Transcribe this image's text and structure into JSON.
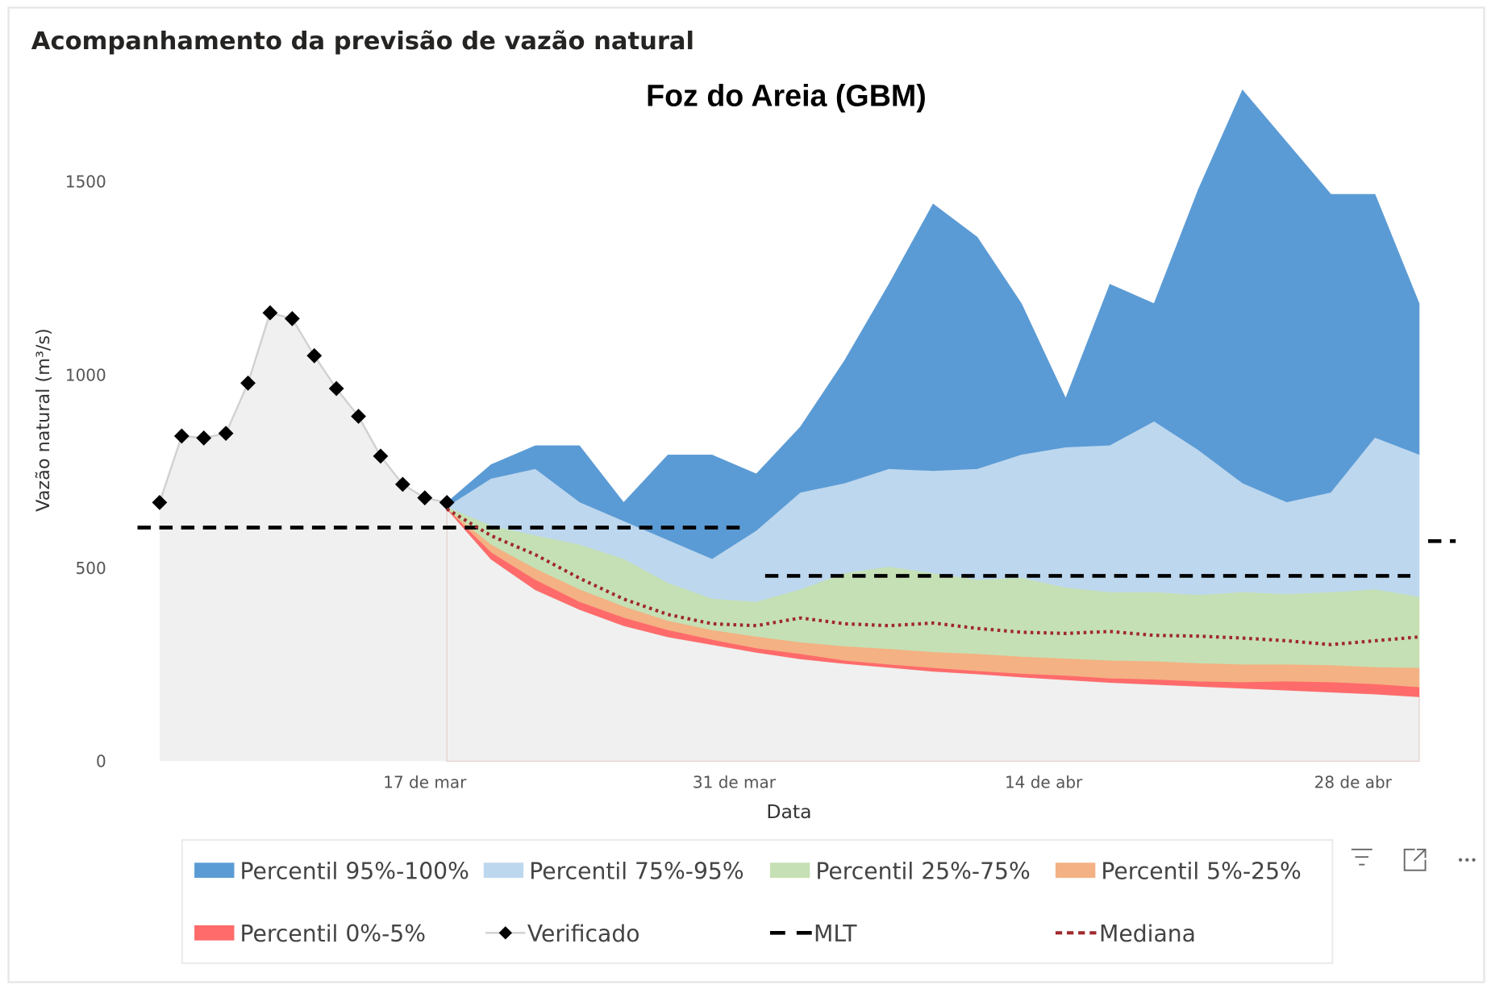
{
  "chart_data": {
    "type": "area",
    "visual_title": "Acompanhamento da previsão de vazão natural",
    "title": "Foz do Areia (GBM)",
    "x_label": "Data",
    "y_label": "Vazão natural (m³/s)",
    "xlim": [
      63,
      122.65
    ],
    "xticks": [
      {
        "value": 76,
        "label": "17 de mar"
      },
      {
        "value": 90,
        "label": "31 de mar"
      },
      {
        "value": 104,
        "label": "14 de abr"
      },
      {
        "value": 118,
        "label": "28 de abr"
      }
    ],
    "ylim": [
      0,
      1750
    ],
    "yticks": [
      0,
      500,
      1000,
      1500
    ],
    "grid": false,
    "base_color": "#f0f0f0",
    "x": [
      77,
      79,
      81,
      83,
      85,
      87,
      89,
      91,
      93,
      95,
      97,
      99,
      101,
      103,
      105,
      107,
      109,
      111,
      113,
      115,
      117,
      119,
      121
    ],
    "series": [
      {
        "name": "Percentil 95%-100%",
        "style": "band",
        "color": "#5b9bd5",
        "low": [
          658,
          731,
          756,
          670,
          621,
          572,
          523,
          596,
          695,
          719,
          756,
          751,
          756,
          793,
          812,
          817,
          879,
          805,
          719,
          670,
          695,
          837,
          793
        ],
        "high": [
          670,
          768,
          817,
          817,
          670,
          793,
          793,
          744,
          866,
          1038,
          1235,
          1443,
          1357,
          1185,
          940,
          1235,
          1185,
          1480,
          1738,
          1603,
          1468,
          1468,
          1185
        ]
      },
      {
        "name": "Percentil 75%-95%",
        "style": "band",
        "color": "#bdd7ee",
        "low": [
          658,
          609,
          584,
          560,
          523,
          461,
          420,
          412,
          444,
          486,
          503,
          486,
          469,
          474,
          449,
          437,
          437,
          430,
          437,
          432,
          437,
          444,
          425
        ],
        "high": [
          658,
          731,
          756,
          670,
          621,
          572,
          523,
          596,
          695,
          719,
          756,
          751,
          756,
          793,
          812,
          817,
          879,
          805,
          719,
          670,
          695,
          837,
          793
        ]
      },
      {
        "name": "Percentil 25%-75%",
        "style": "band",
        "color": "#c5e0b4",
        "low": [
          653,
          560,
          498,
          444,
          400,
          363,
          339,
          322,
          307,
          297,
          290,
          282,
          277,
          270,
          265,
          260,
          258,
          253,
          250,
          250,
          248,
          243,
          241
        ],
        "high": [
          658,
          609,
          584,
          560,
          523,
          461,
          420,
          412,
          444,
          486,
          503,
          486,
          469,
          474,
          449,
          437,
          437,
          430,
          437,
          432,
          437,
          444,
          425
        ]
      },
      {
        "name": "Percentil 5%-25%",
        "style": "band",
        "color": "#f4b183",
        "low": [
          653,
          540,
          469,
          412,
          371,
          339,
          314,
          292,
          277,
          260,
          250,
          241,
          233,
          226,
          221,
          214,
          211,
          206,
          204,
          206,
          204,
          199,
          191
        ],
        "high": [
          653,
          560,
          498,
          444,
          400,
          363,
          339,
          322,
          307,
          297,
          290,
          282,
          277,
          270,
          265,
          260,
          258,
          253,
          250,
          250,
          248,
          243,
          241
        ]
      },
      {
        "name": "Percentil 0%-5%",
        "style": "band",
        "color": "#ff6b6b",
        "low": [
          653,
          523,
          444,
          393,
          351,
          322,
          302,
          282,
          265,
          253,
          243,
          233,
          226,
          218,
          211,
          204,
          199,
          194,
          189,
          184,
          179,
          174,
          167
        ],
        "high": [
          653,
          540,
          469,
          412,
          371,
          339,
          314,
          292,
          277,
          260,
          250,
          241,
          233,
          226,
          221,
          214,
          211,
          206,
          204,
          206,
          204,
          199,
          191
        ]
      },
      {
        "name": "Verificado",
        "style": "markers",
        "color": "#000000",
        "line_color": "#d0d0d0",
        "x": [
          64,
          65,
          66,
          67,
          68,
          69,
          70,
          71,
          72,
          73,
          74,
          75,
          76,
          77
        ],
        "values": [
          670,
          842,
          837,
          849,
          979,
          1161,
          1146,
          1050,
          965,
          893,
          790,
          717,
          682,
          670
        ]
      },
      {
        "name": "MLT",
        "style": "dashed",
        "color": "#000000",
        "x": [
          63,
          90.6,
          91,
          91.4,
          120.6,
          121,
          121.4,
          122.65
        ],
        "values": [
          605,
          605,
          null,
          480,
          480,
          null,
          570,
          570
        ]
      },
      {
        "name": "Mediana",
        "style": "dotted",
        "color": "#a0282d",
        "values": [
          653,
          584,
          535,
          474,
          420,
          380,
          356,
          351,
          371,
          356,
          351,
          358,
          344,
          334,
          331,
          336,
          326,
          324,
          319,
          312,
          302,
          312,
          322
        ]
      }
    ]
  }
}
